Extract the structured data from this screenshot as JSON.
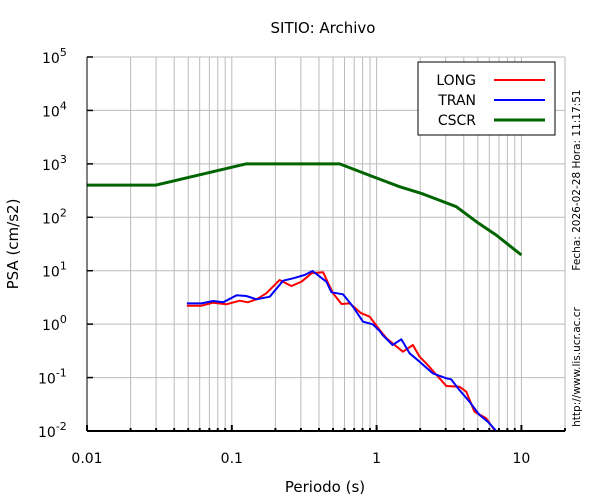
{
  "chart_data": {
    "type": "line",
    "title": "SITIO: Archivo",
    "xlabel": "Periodo (s)",
    "ylabel": "PSA (cm/s2)",
    "xscale": "log",
    "yscale": "log",
    "xlim": [
      0.01,
      20
    ],
    "ylim": [
      0.01,
      100000
    ],
    "x_ticks": [
      {
        "value": 0.01,
        "label": "0.01"
      },
      {
        "value": 0.1,
        "label": "0.1"
      },
      {
        "value": 1,
        "label": "1"
      },
      {
        "value": 10,
        "label": "10"
      }
    ],
    "y_ticks": [
      {
        "value": 100000,
        "base": "10",
        "exp": "5"
      },
      {
        "value": 10000,
        "base": "10",
        "exp": "4"
      },
      {
        "value": 1000,
        "base": "10",
        "exp": "3"
      },
      {
        "value": 100,
        "base": "10",
        "exp": "2"
      },
      {
        "value": 10,
        "base": "10",
        "exp": "1"
      },
      {
        "value": 1,
        "base": "10",
        "exp": "0"
      },
      {
        "value": 0.1,
        "base": "10",
        "exp": "-1"
      },
      {
        "value": 0.01,
        "base": "10",
        "exp": "-2"
      }
    ],
    "grid": true,
    "legend_position": "top-right",
    "series": [
      {
        "name": "LONG",
        "color": "#ff0000",
        "x": [
          0.049,
          0.0618,
          0.0743,
          0.0918,
          0.1135,
          0.129,
          0.148,
          0.173,
          0.214,
          0.258,
          0.303,
          0.355,
          0.427,
          0.5,
          0.572,
          0.652,
          0.783,
          0.896,
          1.05,
          1.17,
          1.52,
          1.78,
          1.98,
          2.2,
          2.72,
          3.03,
          3.73,
          4.16,
          4.74,
          5.71,
          6.51
        ],
        "y": [
          2.21,
          2.21,
          2.52,
          2.35,
          2.75,
          2.56,
          2.92,
          3.78,
          6.7,
          5.18,
          6.24,
          8.95,
          9.33,
          3.78,
          2.38,
          2.45,
          1.6,
          1.38,
          0.776,
          0.543,
          0.305,
          0.407,
          0.246,
          0.185,
          0.0969,
          0.0695,
          0.0675,
          0.0544,
          0.023,
          0.0173,
          0.0104
        ]
      },
      {
        "name": "TRAN",
        "color": "#0000ff",
        "x": [
          0.049,
          0.0618,
          0.0743,
          0.0871,
          0.108,
          0.126,
          0.148,
          0.183,
          0.226,
          0.265,
          0.318,
          0.361,
          0.45,
          0.488,
          0.586,
          0.687,
          0.805,
          0.942,
          1.05,
          1.1,
          1.29,
          1.48,
          1.69,
          1.98,
          2.44,
          3.03,
          3.27,
          3.73,
          4.38,
          5.13,
          5.86,
          6.69
        ],
        "y": [
          2.45,
          2.45,
          2.71,
          2.56,
          3.47,
          3.36,
          2.92,
          3.27,
          6.5,
          7.21,
          8.32,
          9.88,
          6.24,
          3.94,
          3.62,
          2.12,
          1.11,
          0.993,
          0.744,
          0.627,
          0.407,
          0.52,
          0.285,
          0.198,
          0.12,
          0.0969,
          0.0929,
          0.0585,
          0.0354,
          0.02,
          0.0149,
          0.0101
        ]
      },
      {
        "name": "CSCR",
        "color": "#006400",
        "x": [
          0.01,
          0.03,
          0.125,
          0.556,
          0.918,
          1.44,
          2.03,
          2.58,
          3.55,
          4.87,
          6.69,
          10
        ],
        "y": [
          400,
          400,
          1000,
          1000,
          593,
          374,
          281,
          220,
          158,
          83,
          46.6,
          19.7
        ]
      }
    ]
  },
  "side_text": {
    "date": "Fecha: 2026-02-28  Hora: 11:17:51",
    "url": "http://www.lis.ucr.ac.cr"
  }
}
